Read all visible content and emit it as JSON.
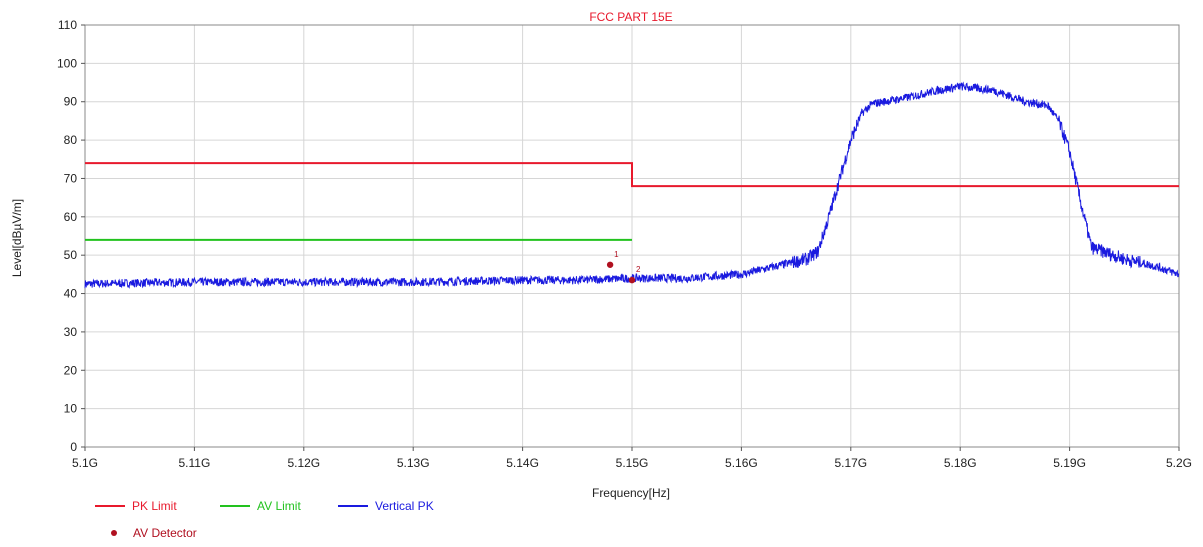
{
  "chart_data": {
    "type": "line",
    "title": "FCC PART 15E",
    "xlabel": "Frequency[Hz]",
    "ylabel": "Level[dBµV/m]",
    "xlim": [
      5.1,
      5.2
    ],
    "ylim": [
      0,
      110
    ],
    "x_ticks": [
      5.1,
      5.11,
      5.12,
      5.13,
      5.14,
      5.15,
      5.16,
      5.17,
      5.18,
      5.19,
      5.2
    ],
    "x_tick_labels": [
      "5.1G",
      "5.11G",
      "5.12G",
      "5.13G",
      "5.14G",
      "5.15G",
      "5.16G",
      "5.17G",
      "5.18G",
      "5.19G",
      "5.2G"
    ],
    "y_ticks": [
      0,
      10,
      20,
      30,
      40,
      50,
      60,
      70,
      80,
      90,
      100,
      110
    ],
    "y_tick_labels": [
      "0",
      "10",
      "20",
      "30",
      "40",
      "50",
      "60",
      "70",
      "80",
      "90",
      "100",
      "110"
    ],
    "grid": true,
    "legend_position": "bottom-left",
    "series": [
      {
        "name": "PK Limit",
        "color": "#e8192c",
        "x": [
          5.1,
          5.15,
          5.15,
          5.2
        ],
        "y": [
          74,
          74,
          68,
          68
        ]
      },
      {
        "name": "AV Limit",
        "color": "#22c21e",
        "x": [
          5.1,
          5.15
        ],
        "y": [
          54,
          54
        ]
      },
      {
        "name": "Vertical PK",
        "color": "#1a1adf",
        "x": [
          5.1,
          5.11,
          5.12,
          5.13,
          5.14,
          5.145,
          5.15,
          5.155,
          5.16,
          5.163,
          5.166,
          5.167,
          5.168,
          5.169,
          5.17,
          5.171,
          5.172,
          5.175,
          5.178,
          5.18,
          5.183,
          5.186,
          5.188,
          5.189,
          5.19,
          5.191,
          5.192,
          5.195,
          5.198,
          5.2
        ],
        "y": [
          42.5,
          43,
          43,
          43,
          43.5,
          43.5,
          44,
          44,
          45,
          47,
          49,
          51,
          60,
          70,
          80,
          87,
          89.5,
          91,
          93,
          94,
          93,
          90,
          89,
          85,
          77,
          64,
          52,
          49,
          47,
          45
        ]
      }
    ],
    "markers": [
      {
        "name": "AV Detector",
        "color": "#b01020",
        "points": [
          {
            "x": 5.148,
            "y": 47.5,
            "label": "1"
          },
          {
            "x": 5.15,
            "y": 43.5,
            "label": "2"
          }
        ]
      }
    ]
  }
}
